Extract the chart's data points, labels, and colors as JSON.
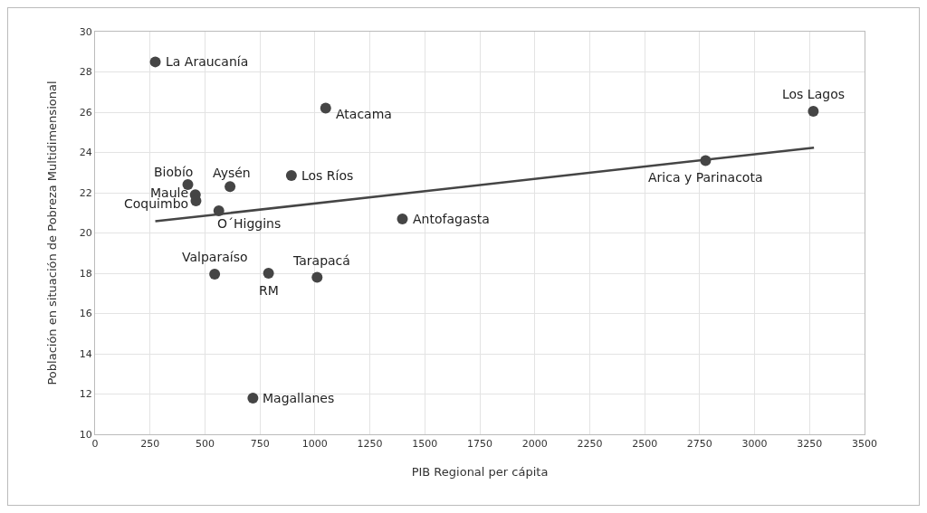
{
  "chart_data": {
    "type": "scatter",
    "xlabel": "PIB Regional per cápita",
    "ylabel": "Población en situación de Pobreza Multidimensional",
    "x": [
      274,
      1049,
      3267,
      2777,
      422,
      614,
      893,
      456,
      459,
      563,
      1398,
      544,
      789,
      1010,
      718
    ],
    "series": [
      {
        "color": "#454545",
        "marker": "circle",
        "values": [
          28.5,
          26.2,
          26.05,
          23.6,
          22.4,
          22.3,
          22.85,
          21.9,
          21.6,
          21.1,
          20.7,
          17.95,
          18.0,
          17.8,
          11.8
        ]
      },
      {
        "type": "line",
        "marker": "none",
        "color": "#454545",
        "x": [
          274,
          3270
        ],
        "values": [
          20.58,
          24.24
        ]
      }
    ],
    "annotations": [
      {
        "text": "La Araucanía",
        "x": 274,
        "y": 28.5
      },
      {
        "text": "Atacama",
        "x": 1049,
        "y": 26.2
      },
      {
        "text": "Los Lagos",
        "x": 3267,
        "y": 26.05
      },
      {
        "text": "Arica y Parinacota",
        "x": 2777,
        "y": 23.6
      },
      {
        "text": "Biobío",
        "x": 422,
        "y": 22.4
      },
      {
        "text": "Aysén",
        "x": 614,
        "y": 22.3
      },
      {
        "text": "Los Ríos",
        "x": 893,
        "y": 22.85
      },
      {
        "text": "Maule",
        "x": 456,
        "y": 21.9
      },
      {
        "text": "Coquimbo",
        "x": 459,
        "y": 21.6
      },
      {
        "text": "O´Higgins",
        "x": 563,
        "y": 21.1
      },
      {
        "text": "Antofagasta",
        "x": 1398,
        "y": 20.7
      },
      {
        "text": "Valparaíso",
        "x": 544,
        "y": 17.95
      },
      {
        "text": "RM",
        "x": 789,
        "y": 18.0
      },
      {
        "text": "Tarapacá",
        "x": 1010,
        "y": 17.8
      },
      {
        "text": "Magallanes",
        "x": 718,
        "y": 11.8
      }
    ],
    "xlim": [
      0,
      3500
    ],
    "xticks": [
      0,
      250,
      500,
      750,
      1000,
      1250,
      1500,
      1750,
      2000,
      2250,
      2500,
      2750,
      3000,
      3250,
      3500
    ],
    "ylim": [
      10,
      30
    ],
    "yticks": [
      10,
      12,
      14,
      16,
      18,
      20,
      22,
      24,
      26,
      28,
      30
    ],
    "grid": true,
    "line_style": "solid"
  }
}
